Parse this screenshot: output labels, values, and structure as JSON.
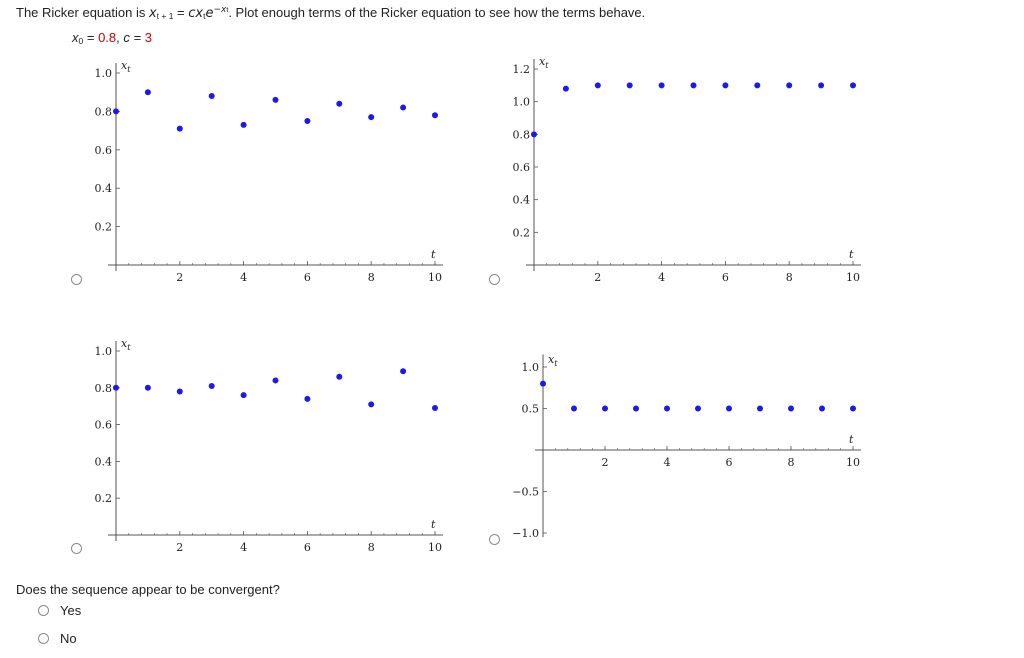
{
  "prompt": {
    "lead": "The Ricker equation is ",
    "eq_x": "x",
    "eq_sub1": "t + 1",
    "eq_eq": " = ",
    "eq_cx": "cx",
    "eq_sub2": "t",
    "eq_e": "e",
    "eq_sup": "−x",
    "eq_sup_sub": "t",
    "tail": ". Plot enough terms of the Ricker equation to see how the terms behave."
  },
  "params": {
    "x0_label": "x",
    "x0_sub": "0",
    "x0_eq": " = ",
    "x0_value": "0.8",
    "sep": ",   ",
    "c_label": "c = ",
    "c_value": "3"
  },
  "question": {
    "text": "Does the sequence appear to be convergent?",
    "options": [
      {
        "label": "Yes"
      },
      {
        "label": "No"
      }
    ]
  },
  "colors": {
    "point": "#1a1aee",
    "axis": "#555555",
    "param_value": "#cc0000"
  },
  "chart_data": [
    {
      "type": "scatter",
      "xlabel": "t",
      "ylabel": "x_t",
      "xlim": [
        0,
        10
      ],
      "ylim": [
        0,
        1.0
      ],
      "xticks": [
        2,
        4,
        6,
        8,
        10
      ],
      "yticks": [
        0.2,
        0.4,
        0.6,
        0.8,
        1.0
      ],
      "ytick_labels": [
        "0.2",
        "0.4",
        "0.6",
        "0.8",
        "1.0"
      ],
      "x": [
        0,
        1,
        2,
        3,
        4,
        5,
        6,
        7,
        8,
        9,
        10
      ],
      "y": [
        0.8,
        0.9,
        0.71,
        0.88,
        0.73,
        0.86,
        0.75,
        0.84,
        0.77,
        0.82,
        0.78
      ]
    },
    {
      "type": "scatter",
      "xlabel": "t",
      "ylabel": "x_t",
      "xlim": [
        0,
        10
      ],
      "ylim": [
        0,
        1.2
      ],
      "xticks": [
        2,
        4,
        6,
        8,
        10
      ],
      "yticks": [
        0.2,
        0.4,
        0.6,
        0.8,
        1.0,
        1.2
      ],
      "ytick_labels": [
        "0.2",
        "0.4",
        "0.6",
        "0.8",
        "1.0",
        "1.2"
      ],
      "x": [
        0,
        1,
        2,
        3,
        4,
        5,
        6,
        7,
        8,
        9,
        10
      ],
      "y": [
        0.8,
        1.08,
        1.1,
        1.1,
        1.1,
        1.1,
        1.1,
        1.1,
        1.1,
        1.1,
        1.1
      ]
    },
    {
      "type": "scatter",
      "xlabel": "t",
      "ylabel": "x_t",
      "xlim": [
        0,
        10
      ],
      "ylim": [
        0,
        1.0
      ],
      "xticks": [
        2,
        4,
        6,
        8,
        10
      ],
      "yticks": [
        0.2,
        0.4,
        0.6,
        0.8,
        1.0
      ],
      "ytick_labels": [
        "0.2",
        "0.4",
        "0.6",
        "0.8",
        "1.0"
      ],
      "x": [
        0,
        1,
        2,
        3,
        4,
        5,
        6,
        7,
        8,
        9,
        10
      ],
      "y": [
        0.8,
        0.8,
        0.78,
        0.81,
        0.76,
        0.84,
        0.74,
        0.86,
        0.71,
        0.89,
        0.69
      ]
    },
    {
      "type": "scatter",
      "xlabel": "t",
      "ylabel": "x_t",
      "xlim": [
        0,
        10
      ],
      "ylim": [
        -1.0,
        1.0
      ],
      "xticks": [
        2,
        4,
        6,
        8,
        10
      ],
      "yticks": [
        -1.0,
        -0.5,
        0.5,
        1.0
      ],
      "ytick_labels": [
        "−1.0",
        "−0.5",
        "0.5",
        "1.0"
      ],
      "x": [
        0,
        1,
        2,
        3,
        4,
        5,
        6,
        7,
        8,
        9,
        10
      ],
      "y": [
        0.8,
        0.5,
        0.5,
        0.5,
        0.5,
        0.5,
        0.5,
        0.5,
        0.5,
        0.5,
        0.5
      ]
    }
  ]
}
